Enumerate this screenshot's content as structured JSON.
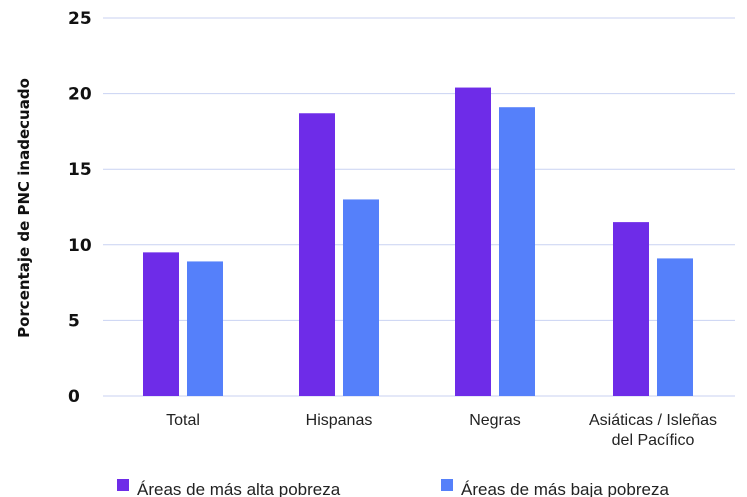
{
  "chart_data": {
    "type": "bar",
    "ylabel": "Porcentaje de PNC inadecuado",
    "xlabel": "",
    "ylim": [
      0,
      25
    ],
    "yticks": [
      0,
      5,
      10,
      15,
      20,
      25
    ],
    "categories": [
      [
        "Total"
      ],
      [
        "Hispanas"
      ],
      [
        "Negras"
      ],
      [
        "Asiáticas / Isleñas",
        "del Pacífico"
      ]
    ],
    "series": [
      {
        "name": "Áreas de más alta pobreza",
        "color": "#6e2ce8",
        "values": [
          9.5,
          18.7,
          20.4,
          11.5
        ]
      },
      {
        "name": "Áreas de más baja pobreza",
        "color": "#5580fa",
        "values": [
          8.9,
          13.0,
          19.1,
          9.1
        ]
      }
    ],
    "grid": true,
    "legend_position": "bottom"
  }
}
